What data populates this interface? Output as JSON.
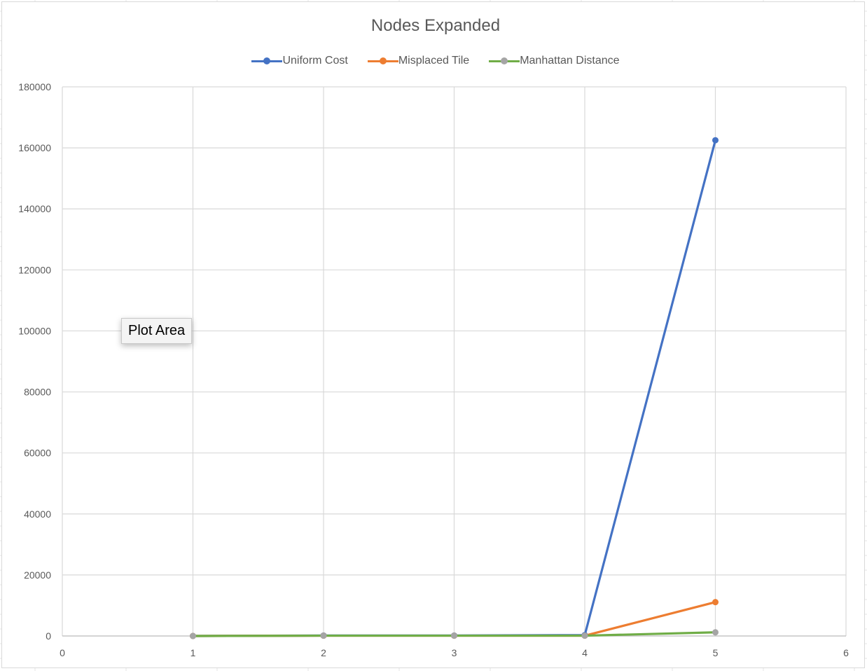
{
  "chart_data": {
    "type": "line",
    "title": "Nodes Expanded",
    "xlabel": "",
    "ylabel": "",
    "xlim": [
      0,
      6
    ],
    "ylim": [
      0,
      180000
    ],
    "x_ticks": [
      0,
      1,
      2,
      3,
      4,
      5,
      6
    ],
    "y_ticks": [
      0,
      20000,
      40000,
      60000,
      80000,
      100000,
      120000,
      140000,
      160000,
      180000
    ],
    "grid": true,
    "legend_position": "top",
    "series": [
      {
        "name": "Uniform Cost",
        "color": "#4472c4",
        "x": [
          1,
          2,
          3,
          4,
          5
        ],
        "values": [
          0,
          150,
          150,
          300,
          162500
        ]
      },
      {
        "name": "Misplaced Tile",
        "color": "#ed7d31",
        "x": [
          1,
          2,
          3,
          4,
          5
        ],
        "values": [
          0,
          100,
          100,
          100,
          11100
        ]
      },
      {
        "name": "Manhattan Distance",
        "color": "#70ad47",
        "marker_color": "#a5a5a5",
        "x": [
          1,
          2,
          3,
          4,
          5
        ],
        "values": [
          0,
          100,
          100,
          100,
          1200
        ]
      }
    ]
  },
  "tooltip": {
    "label": "Plot Area"
  }
}
